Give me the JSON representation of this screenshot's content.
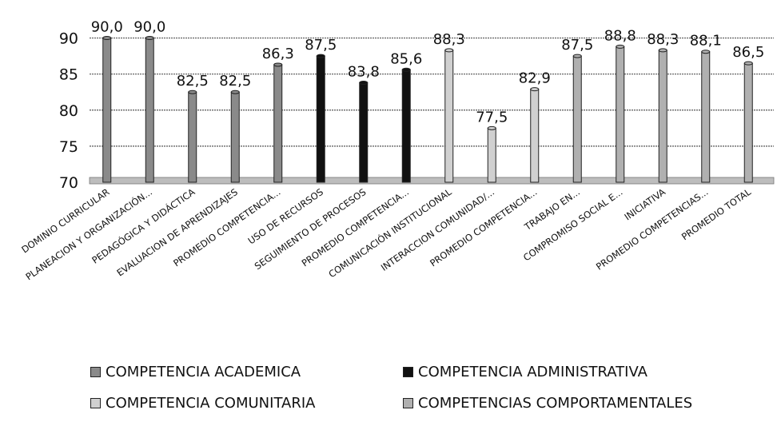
{
  "chart_data": {
    "type": "bar",
    "categories": [
      "DOMINIO CURRICULAR",
      "PLANEACION Y ORGANIZACIÓN...",
      "PEDAGÓGICA Y DIDÁCTICA",
      "EVALUACION DE APRENDIZAJES",
      "PROMEDIO COMPETENCIA...",
      "USO DE RECURSOS",
      "SEGUIMIENTO DE PROCESOS",
      "PROMEDIO COMPETENCIA...",
      "COMUNICACIÓN INSTITUCIONAL",
      "INTERACCION COMUNIDAD/...",
      "PROMEDIO COMPETENCIA...",
      "TRABAJO EN...",
      "COMPROMISO SOCIAL E...",
      "INICIATIVA",
      "PROMEDIO COMPETENCIAS...",
      "PROMEDIO TOTAL"
    ],
    "values": [
      90.0,
      90.0,
      82.5,
      82.5,
      86.3,
      87.5,
      83.8,
      85.6,
      88.3,
      77.5,
      82.9,
      87.5,
      88.8,
      88.3,
      88.1,
      86.5
    ],
    "data_labels": [
      "90,0",
      "90,0",
      "82,5",
      "82,5",
      "86,3",
      "87,5",
      "83,8",
      "85,6",
      "88,3",
      "77,5",
      "82,9",
      "87,5",
      "88,8",
      "88,3",
      "88,1",
      "86,5"
    ],
    "series_index": [
      0,
      0,
      0,
      0,
      0,
      1,
      1,
      1,
      2,
      2,
      2,
      3,
      3,
      3,
      3,
      3
    ],
    "series": [
      {
        "name": "COMPETENCIA ACADEMICA",
        "color": "#8a8a8a"
      },
      {
        "name": "COMPETENCIA ADMINISTRATIVA",
        "color": "#111111"
      },
      {
        "name": "COMPETENCIA COMUNITARIA",
        "color": "#d0d0d0"
      },
      {
        "name": "COMPETENCIAS COMPORTAMENTALES",
        "color": "#b0b0b0"
      }
    ],
    "y_ticks": [
      "70",
      "75",
      "80",
      "85",
      "90"
    ],
    "ylim": [
      70,
      92.5
    ],
    "title": "",
    "xlabel": "",
    "ylabel": "",
    "grid": true,
    "legend_position": "bottom"
  }
}
